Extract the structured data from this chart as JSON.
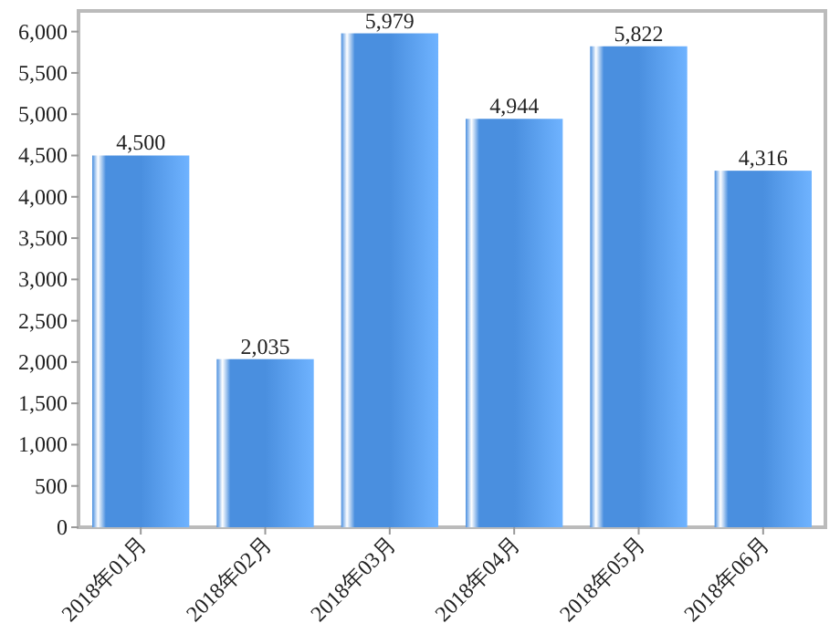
{
  "chart_data": {
    "type": "bar",
    "categories": [
      "2018年01月",
      "2018年02月",
      "2018年03月",
      "2018年04月",
      "2018年05月",
      "2018年06月"
    ],
    "values": [
      4500,
      2035,
      5979,
      4944,
      5822,
      4316
    ],
    "value_labels": [
      "4,500",
      "2,035",
      "5,979",
      "4,944",
      "5,822",
      "4,316"
    ],
    "color": "#4a8fdf",
    "ylim": [
      0,
      6250
    ],
    "yticks": [
      0,
      500,
      {
        "value": 1000,
        "label": "1,000"
      },
      {
        "value": 1500,
        "label": "1,500"
      },
      {
        "value": 2000,
        "label": "2,000"
      },
      {
        "value": 2500,
        "label": "2,500"
      },
      {
        "value": 3000,
        "label": "3,000"
      },
      {
        "value": 3500,
        "label": "3,500"
      },
      {
        "value": 4000,
        "label": "4,000"
      },
      {
        "value": 4500,
        "label": "4,500"
      },
      {
        "value": 5000,
        "label": "5,000"
      },
      {
        "value": 5500,
        "label": "5,500"
      },
      {
        "value": 6000,
        "label": "6,000"
      }
    ],
    "grid": false
  }
}
